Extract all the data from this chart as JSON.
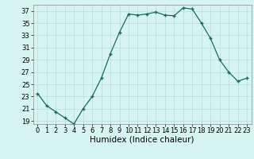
{
  "x": [
    0,
    1,
    2,
    3,
    4,
    5,
    6,
    7,
    8,
    9,
    10,
    11,
    12,
    13,
    14,
    15,
    16,
    17,
    18,
    19,
    20,
    21,
    22,
    23
  ],
  "y": [
    23.5,
    21.5,
    20.5,
    19.5,
    18.5,
    21.0,
    23.0,
    26.0,
    30.0,
    33.5,
    36.5,
    36.3,
    36.5,
    36.8,
    36.3,
    36.2,
    37.5,
    37.3,
    35.0,
    32.5,
    29.0,
    27.0,
    25.5,
    26.0
  ],
  "xlabel": "Humidex (Indice chaleur)",
  "ylim": [
    18.5,
    38.0
  ],
  "xlim": [
    -0.5,
    23.5
  ],
  "yticks": [
    19,
    21,
    23,
    25,
    27,
    29,
    31,
    33,
    35,
    37
  ],
  "xticks": [
    0,
    1,
    2,
    3,
    4,
    5,
    6,
    7,
    8,
    9,
    10,
    11,
    12,
    13,
    14,
    15,
    16,
    17,
    18,
    19,
    20,
    21,
    22,
    23
  ],
  "line_color": "#1a6b5a",
  "marker_color": "#1a6b5a",
  "bg_color": "#d6f5f0",
  "grid_color": "#b8ddd8",
  "xlabel_fontsize": 7.5,
  "tick_fontsize": 6.0
}
